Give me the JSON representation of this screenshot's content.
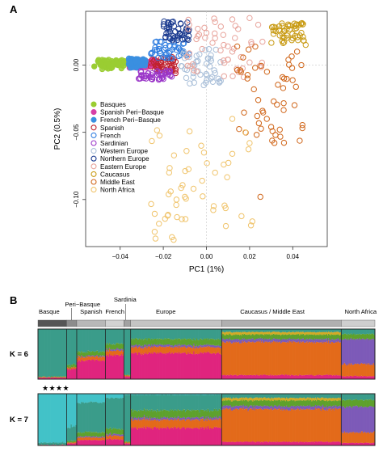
{
  "panels": {
    "a_label": "A",
    "b_label": "B"
  },
  "chart_data": [
    {
      "type": "scatter",
      "xlabel": "PC1 (1%)",
      "ylabel": "PC2 (0.5%)",
      "xlim": [
        -0.056,
        0.056
      ],
      "ylim": [
        -0.135,
        0.04
      ],
      "x_ticks": [
        -0.04,
        -0.02,
        0.0,
        0.02,
        0.04
      ],
      "x_tick_labels": [
        "−0.04",
        "−0.02",
        "0.00",
        "0.02",
        "0.04"
      ],
      "y_ticks": [
        0.0,
        -0.05,
        -0.1
      ],
      "y_tick_labels": [
        "0.00",
        "−0.05",
        "−0.10"
      ],
      "reference_lines": {
        "x": 0,
        "y": 0
      },
      "legend_position": "left-middle",
      "series": [
        {
          "name": "Basques",
          "color": "#9acd32",
          "filled": true,
          "cluster": {
            "x": [
              -0.051,
              -0.036
            ],
            "y": [
              -0.003,
              0.004
            ]
          },
          "points": [
            [
              -0.052,
              -0.001
            ],
            [
              -0.049,
              0.0
            ],
            [
              -0.046,
              0.001
            ],
            [
              -0.043,
              0.001
            ],
            [
              -0.04,
              0.002
            ],
            [
              -0.037,
              0.002
            ],
            [
              -0.05,
              0.002
            ],
            [
              -0.045,
              -0.001
            ],
            [
              -0.041,
              0.0
            ],
            [
              -0.038,
              0.003
            ]
          ]
        },
        {
          "name": "Spanish Peri−Basque",
          "color": "#d63fa6",
          "filled": true,
          "cluster": {
            "x": [
              -0.036,
              -0.022
            ],
            "y": [
              -0.002,
              0.004
            ]
          },
          "points": [
            [
              -0.035,
              0.002
            ],
            [
              -0.032,
              0.001
            ],
            [
              -0.029,
              0.002
            ],
            [
              -0.026,
              0.001
            ],
            [
              -0.024,
              0.003
            ],
            [
              -0.031,
              0.003
            ],
            [
              -0.027,
              -0.001
            ]
          ]
        },
        {
          "name": "French Peri−Basque",
          "color": "#3a8fe0",
          "filled": true,
          "cluster": {
            "x": [
              -0.036,
              -0.028
            ],
            "y": [
              -0.002,
              0.005
            ]
          },
          "points": [
            [
              -0.035,
              0.001
            ],
            [
              -0.033,
              0.003
            ],
            [
              -0.031,
              0.002
            ],
            [
              -0.03,
              0.0
            ],
            [
              -0.029,
              0.004
            ]
          ]
        },
        {
          "name": "Spanish",
          "color": "#c0222e",
          "filled": false,
          "cluster": {
            "x": [
              -0.026,
              -0.014
            ],
            "y": [
              -0.006,
              0.006
            ]
          },
          "points": [
            [
              -0.024,
              0.004
            ],
            [
              -0.022,
              0.001
            ],
            [
              -0.021,
              0.005
            ],
            [
              -0.019,
              0.002
            ],
            [
              -0.018,
              -0.001
            ],
            [
              -0.017,
              0.003
            ],
            [
              -0.016,
              0.006
            ],
            [
              -0.02,
              -0.003
            ],
            [
              -0.015,
              0.0
            ],
            [
              -0.023,
              -0.002
            ]
          ]
        },
        {
          "name": "French",
          "color": "#2f7de0",
          "filled": false,
          "cluster": {
            "x": [
              -0.026,
              -0.008
            ],
            "y": [
              0.005,
              0.018
            ]
          },
          "points": [
            [
              -0.024,
              0.008
            ],
            [
              -0.022,
              0.012
            ],
            [
              -0.019,
              0.015
            ],
            [
              -0.017,
              0.01
            ],
            [
              -0.015,
              0.017
            ],
            [
              -0.013,
              0.013
            ],
            [
              -0.011,
              0.009
            ],
            [
              -0.02,
              0.006
            ],
            [
              -0.016,
              0.005
            ]
          ]
        },
        {
          "name": "Sardinian",
          "color": "#9a36c8",
          "filled": false,
          "cluster": {
            "x": [
              -0.032,
              -0.016
            ],
            "y": [
              -0.011,
              -0.004
            ]
          },
          "points": [
            [
              -0.03,
              -0.008
            ],
            [
              -0.027,
              -0.006
            ],
            [
              -0.025,
              -0.009
            ],
            [
              -0.023,
              -0.005
            ],
            [
              -0.021,
              -0.008
            ],
            [
              -0.019,
              -0.006
            ],
            [
              -0.028,
              -0.01
            ]
          ]
        },
        {
          "name": "Western Europe",
          "color": "#a9bfd9",
          "filled": false,
          "cluster": {
            "x": [
              -0.012,
              0.008
            ],
            "y": [
              -0.015,
              0.012
            ]
          },
          "points": [
            [
              -0.01,
              -0.003
            ],
            [
              -0.006,
              -0.006
            ],
            [
              -0.004,
              0.003
            ],
            [
              0.002,
              -0.01
            ],
            [
              0.004,
              -0.006
            ],
            [
              -0.008,
              0.006
            ],
            [
              0.006,
              -0.013
            ],
            [
              0.0,
              0.001
            ]
          ]
        },
        {
          "name": "Northern Europe",
          "color": "#1a3a8f",
          "filled": false,
          "cluster": {
            "x": [
              -0.02,
              -0.008
            ],
            "y": [
              0.018,
              0.033
            ]
          },
          "points": [
            [
              -0.019,
              0.021
            ],
            [
              -0.017,
              0.025
            ],
            [
              -0.015,
              0.029
            ],
            [
              -0.013,
              0.027
            ],
            [
              -0.012,
              0.031
            ],
            [
              -0.01,
              0.024
            ],
            [
              -0.016,
              0.032
            ],
            [
              -0.011,
              0.019
            ]
          ]
        },
        {
          "name": "Eastern Europe",
          "color": "#e8a49c",
          "filled": false,
          "cluster": {
            "x": [
              -0.01,
              0.026
            ],
            "y": [
              -0.01,
              0.036
            ]
          },
          "points": [
            [
              -0.008,
              0.03
            ],
            [
              -0.004,
              0.027
            ],
            [
              0.0,
              0.024
            ],
            [
              0.004,
              0.02
            ],
            [
              0.008,
              0.015
            ],
            [
              0.012,
              0.01
            ],
            [
              0.016,
              0.006
            ],
            [
              0.02,
              0.002
            ],
            [
              0.004,
              0.032
            ],
            [
              0.012,
              0.034
            ],
            [
              0.02,
              0.035
            ],
            [
              0.024,
              0.03
            ],
            [
              -0.002,
              0.012
            ],
            [
              0.01,
              0.004
            ]
          ]
        },
        {
          "name": "Caucasus",
          "color": "#c89a12",
          "filled": false,
          "cluster": {
            "x": [
              0.03,
              0.046
            ],
            "y": [
              0.016,
              0.032
            ]
          },
          "points": [
            [
              0.032,
              0.028
            ],
            [
              0.035,
              0.031
            ],
            [
              0.038,
              0.029
            ],
            [
              0.041,
              0.027
            ],
            [
              0.043,
              0.03
            ],
            [
              0.034,
              0.022
            ],
            [
              0.04,
              0.02
            ],
            [
              0.044,
              0.024
            ],
            [
              0.036,
              0.017
            ],
            [
              0.046,
              0.015
            ]
          ]
        },
        {
          "name": "Middle East",
          "color": "#d0661a",
          "filled": false,
          "cluster": {
            "x": [
              0.014,
              0.046
            ],
            "y": [
              -0.058,
              0.014
            ]
          },
          "points": [
            [
              0.016,
              -0.005
            ],
            [
              0.019,
              -0.01
            ],
            [
              0.022,
              -0.018
            ],
            [
              0.024,
              -0.026
            ],
            [
              0.026,
              -0.034
            ],
            [
              0.028,
              -0.04
            ],
            [
              0.03,
              -0.046
            ],
            [
              0.032,
              -0.052
            ],
            [
              0.034,
              -0.048
            ],
            [
              0.036,
              -0.01
            ],
            [
              0.038,
              0.004
            ],
            [
              0.042,
              0.01
            ],
            [
              0.044,
              0.0
            ],
            [
              0.025,
              -0.098
            ]
          ]
        },
        {
          "name": "North Africa",
          "color": "#f0c46c",
          "filled": false,
          "cluster": {
            "x": [
              -0.026,
              0.022
            ],
            "y": [
              -0.13,
              -0.048
            ]
          },
          "points": [
            [
              0.018,
              -0.05
            ],
            [
              0.02,
              -0.058
            ],
            [
              0.012,
              -0.066
            ],
            [
              0.008,
              -0.074
            ],
            [
              0.004,
              -0.08
            ],
            [
              -0.002,
              -0.086
            ],
            [
              -0.006,
              -0.092
            ],
            [
              -0.01,
              -0.098
            ],
            [
              -0.014,
              -0.104
            ],
            [
              -0.018,
              -0.112
            ],
            [
              -0.022,
              -0.118
            ],
            [
              -0.024,
              -0.124
            ],
            [
              -0.016,
              -0.128
            ],
            [
              0.012,
              -0.04
            ]
          ]
        }
      ]
    },
    {
      "type": "area",
      "title": "",
      "groups": [
        {
          "label": "Basque",
          "start": 0.0,
          "end": 0.085,
          "tone": "#555555"
        },
        {
          "label": "Peri−Basque",
          "start": 0.085,
          "end": 0.115,
          "tone": "#8c8c8c"
        },
        {
          "label": "Spanish",
          "start": 0.115,
          "end": 0.2,
          "tone": "#b8b8b8"
        },
        {
          "label": "French",
          "start": 0.2,
          "end": 0.255,
          "tone": "#d2d2d2"
        },
        {
          "label": "Sardinia",
          "start": 0.255,
          "end": 0.275,
          "tone": "#a2a2a2"
        },
        {
          "label": "Europe",
          "start": 0.275,
          "end": 0.545,
          "tone": "#c4c4c4"
        },
        {
          "label": "Caucasus / Middle East",
          "start": 0.545,
          "end": 0.9,
          "tone": "#b0b0b0"
        },
        {
          "label": "North Africa",
          "start": 0.9,
          "end": 1.0,
          "tone": "#cfcfcf"
        }
      ],
      "rows": [
        {
          "label": "K = 6",
          "k": 6
        },
        {
          "label": "K = 7",
          "k": 7
        }
      ],
      "stars": [
        "★",
        "★",
        "★",
        "★"
      ],
      "component_colors": [
        "#3a9c8a",
        "#e0247e",
        "#e36a1a",
        "#7d5ab8",
        "#5ea12c",
        "#d3aa26",
        "#42c2c8"
      ],
      "segments_k6": [
        {
          "end": 0.085,
          "p": [
            0.95,
            0.03,
            0.01,
            0.0,
            0.01,
            0.0
          ]
        },
        {
          "end": 0.115,
          "p": [
            0.72,
            0.2,
            0.03,
            0.0,
            0.05,
            0.0
          ]
        },
        {
          "end": 0.2,
          "p": [
            0.45,
            0.38,
            0.07,
            0.02,
            0.08,
            0.0
          ]
        },
        {
          "end": 0.255,
          "p": [
            0.3,
            0.48,
            0.09,
            0.03,
            0.1,
            0.0
          ]
        },
        {
          "end": 0.275,
          "p": [
            0.92,
            0.05,
            0.02,
            0.0,
            0.01,
            0.0
          ]
        },
        {
          "end": 0.545,
          "p": [
            0.2,
            0.52,
            0.12,
            0.04,
            0.12,
            0.0
          ]
        },
        {
          "end": 0.9,
          "p": [
            0.06,
            0.08,
            0.66,
            0.06,
            0.09,
            0.05
          ]
        },
        {
          "end": 1.0,
          "p": [
            0.1,
            0.06,
            0.24,
            0.5,
            0.1,
            0.0
          ]
        }
      ],
      "segments_k7": [
        {
          "end": 0.085,
          "p": [
            0.04,
            0.01,
            0.0,
            0.0,
            0.0,
            0.0,
            0.95
          ]
        },
        {
          "end": 0.115,
          "p": [
            0.28,
            0.04,
            0.02,
            0.0,
            0.03,
            0.0,
            0.63
          ]
        },
        {
          "end": 0.2,
          "p": [
            0.58,
            0.1,
            0.05,
            0.02,
            0.08,
            0.0,
            0.17
          ]
        },
        {
          "end": 0.255,
          "p": [
            0.6,
            0.12,
            0.07,
            0.03,
            0.1,
            0.0,
            0.08
          ]
        },
        {
          "end": 0.275,
          "p": [
            0.9,
            0.04,
            0.02,
            0.0,
            0.02,
            0.0,
            0.02
          ]
        },
        {
          "end": 0.545,
          "p": [
            0.3,
            0.34,
            0.16,
            0.04,
            0.14,
            0.0,
            0.02
          ]
        },
        {
          "end": 0.9,
          "p": [
            0.08,
            0.07,
            0.63,
            0.06,
            0.11,
            0.05,
            0.0
          ]
        },
        {
          "end": 1.0,
          "p": [
            0.12,
            0.05,
            0.2,
            0.5,
            0.13,
            0.0,
            0.0
          ]
        }
      ]
    }
  ]
}
